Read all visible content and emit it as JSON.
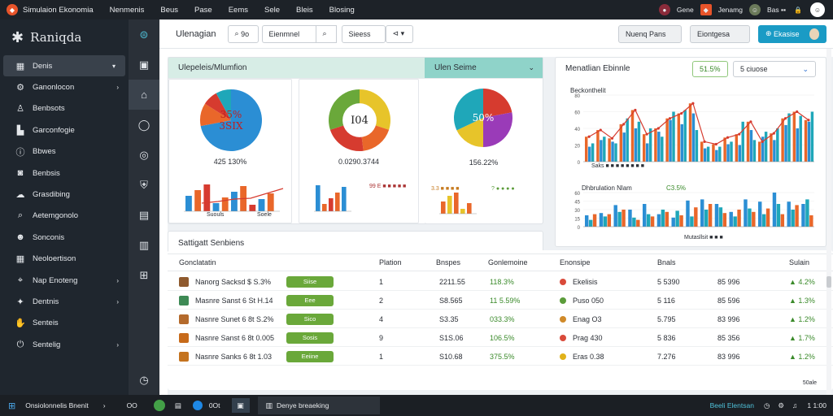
{
  "app": {
    "menu": [
      "Simulaion Ekonomia",
      "Nenmenis",
      "Beus",
      "Pase",
      "Eems",
      "Sele",
      "Bleis",
      "Blosing"
    ]
  },
  "topbar_right": {
    "item1": "Gene",
    "item2": "Jenamg",
    "item3": "Bas ▪▪"
  },
  "sidebar": {
    "brand": "Raniqda",
    "items": [
      {
        "label": "Denis",
        "icon": "dashboard-icon",
        "chev": "▾"
      },
      {
        "label": "Ganonlocon",
        "icon": "settings-icon",
        "chev": "›"
      },
      {
        "label": "Benbsots",
        "icon": "user-icon",
        "chev": ""
      },
      {
        "label": "Garconfogie",
        "icon": "chart-icon",
        "chev": ""
      },
      {
        "label": "Bbwes",
        "icon": "info-icon",
        "chev": ""
      },
      {
        "label": "Benbsis",
        "icon": "camera-icon",
        "chev": ""
      },
      {
        "label": "Grasdibing",
        "icon": "cloud-icon",
        "chev": ""
      },
      {
        "label": "Aetemgonolo",
        "icon": "search-icon",
        "chev": ""
      },
      {
        "label": "Sonconis",
        "icon": "people-icon",
        "chev": ""
      },
      {
        "label": "Neoloertison",
        "icon": "calendar-icon",
        "chev": ""
      },
      {
        "label": "Nap Enoteng",
        "icon": "map-icon",
        "chev": "›"
      },
      {
        "label": "Dentnis",
        "icon": "gear-icon",
        "chev": "›"
      },
      {
        "label": "Senteis",
        "icon": "hand-icon",
        "chev": ""
      },
      {
        "label": "Sentelig",
        "icon": "power-icon",
        "chev": "›"
      }
    ]
  },
  "header": {
    "title": "Ulenagian",
    "search1": "9o",
    "btn1": "Eienmnel",
    "btn2": "Sieess",
    "btn3": "Nuenq Pans",
    "btn4": "Eiontgesa",
    "btn5": "Ekasise"
  },
  "card1": {
    "title": "Ulepeleis/Mlumfion",
    "pie_label": "35%\n3SIX",
    "pie_value": "425 130%",
    "bars_label": "Suouls",
    "bars_label2": "Soele"
  },
  "card2": {
    "pie_label": "I04",
    "pie_value": "0.0290.3744",
    "legend": "99 E ■ ■ ■ ■ ■"
  },
  "card3": {
    "title": "Ulen Seime",
    "pie_label": "50%",
    "pie_value": "156.22%",
    "legend": "3.3 ■ ■ ■ ■",
    "legend2": "? ● ● ● ●"
  },
  "card4": {
    "title": "Menatlian Ebinnle",
    "btn": "51.5%",
    "select": "5 ciuose",
    "sub1": "Beckonthelit",
    "sub2": "Dhbrulation Nlam",
    "sub2_val": "C3.5%",
    "legend1": "Saks ■ ■ ■ ■ ■ ■ ■ ■",
    "legend2": "Mutasllsit ■ ■ ■"
  },
  "table": {
    "title": "Sattigatt Senbiens",
    "columns": [
      "Gonclatatin",
      "Plation",
      "Bnspes",
      "Gonlemoine",
      "Enonsipe",
      "Bnals",
      "Sulain"
    ],
    "rows": [
      {
        "name": "Nanorg Sacksd $ S.3%",
        "badge": "Siise",
        "num": "1",
        "a": "2211.55",
        "b": "118.3%",
        "dot": "#d94a3a",
        "c": "Ekelisis",
        "d": "5 5390",
        "e": "85 996",
        "f": "4.2%",
        "color": "#8f5a2e"
      },
      {
        "name": "Masnre Sanst 6 St H.14",
        "badge": "Eee",
        "num": "2",
        "a": "S8.565",
        "b": "11 5.59%",
        "dot": "#5b9c3a",
        "c": "Puso 050",
        "d": "5 116",
        "e": "85 596",
        "f": "1.3%",
        "color": "#3e8a55"
      },
      {
        "name": "Nasnre Sunet 6 8t S.2%",
        "badge": "Sico",
        "num": "4",
        "a": "S3.35",
        "b": "033.3%",
        "dot": "#d08a2a",
        "c": "Enag O3",
        "d": "5.795",
        "e": "83 996",
        "f": "1.2%",
        "color": "#b46a2c"
      },
      {
        "name": "Nasnre Sanst 6 8t 0.005",
        "badge": "Sosis",
        "num": "9",
        "a": "S1S.06",
        "b": "106.5%",
        "dot": "#d94a3a",
        "c": "Prag 430",
        "d": "5 836",
        "e": "85 356",
        "f": "1.7%",
        "color": "#c76a1a"
      },
      {
        "name": "Nasnre Sanks 6 8t 1.03",
        "badge": "Eeiine",
        "num": "1",
        "a": "S10.68",
        "b": "375.5%",
        "dot": "#e1b21a",
        "c": "Eras 0.38",
        "d": "7.276",
        "e": "83 996",
        "f": "1.2%",
        "color": "#c4731f"
      }
    ],
    "footer": "50ale"
  },
  "taskbar": {
    "item1": "Onsiolonnelis Bnenit",
    "item2": "OO",
    "item3": "0Ot",
    "item4": "Denye breaeking",
    "status": "Beeli Elentsan",
    "time": "1 1:00"
  },
  "colors": {
    "accent": "#1a9bc5",
    "green": "#6aa83a",
    "orange": "#e9672a",
    "blue": "#2b8ed4",
    "teal": "#1fa7b9",
    "red": "#d63b2f",
    "purple": "#9a3bb8",
    "yellow": "#e7c42a"
  },
  "chart_data": [
    {
      "type": "pie",
      "values": [
        72,
        12,
        8,
        8
      ]
    },
    {
      "type": "pie",
      "values": [
        30,
        18,
        22,
        30
      ]
    },
    {
      "type": "pie",
      "values": [
        22,
        28,
        18,
        32
      ]
    },
    {
      "type": "bar",
      "categories": [
        "1",
        "2",
        "3",
        "4",
        "5",
        "6",
        "7",
        "8",
        "9",
        "10",
        "11",
        "12",
        "13",
        "14",
        "15",
        "16",
        "17",
        "18",
        "19",
        "20"
      ],
      "series": [
        {
          "values": [
            30,
            38,
            28,
            45,
            62,
            33,
            40,
            52,
            58,
            70,
            24,
            21,
            29,
            33,
            48,
            24,
            34,
            52,
            60,
            50
          ]
        },
        {
          "values": [
            18,
            26,
            24,
            35,
            40,
            22,
            36,
            50,
            45,
            58,
            16,
            14,
            21,
            20,
            38,
            30,
            26,
            44,
            40,
            48
          ]
        },
        {
          "values": [
            22,
            30,
            22,
            52,
            48,
            40,
            30,
            60,
            62,
            38,
            18,
            18,
            24,
            48,
            26,
            36,
            40,
            58,
            55,
            60
          ]
        }
      ],
      "ylim": [
        0,
        80
      ]
    },
    {
      "type": "bar",
      "categories": [
        "1",
        "2",
        "3",
        "4",
        "5",
        "6",
        "7",
        "8",
        "9",
        "10",
        "11",
        "12",
        "13",
        "14",
        "15",
        "16"
      ],
      "series": [
        {
          "values": [
            20,
            24,
            38,
            30,
            40,
            22,
            16,
            46,
            48,
            40,
            26,
            48,
            44,
            60,
            44,
            40
          ]
        },
        {
          "values": [
            12,
            18,
            26,
            16,
            22,
            30,
            28,
            18,
            30,
            34,
            18,
            32,
            22,
            40,
            30,
            48
          ]
        },
        {
          "values": [
            22,
            22,
            30,
            12,
            18,
            26,
            20,
            34,
            40,
            24,
            30,
            26,
            32,
            22,
            38,
            20
          ]
        }
      ],
      "ylim": [
        0,
        60
      ]
    }
  ]
}
